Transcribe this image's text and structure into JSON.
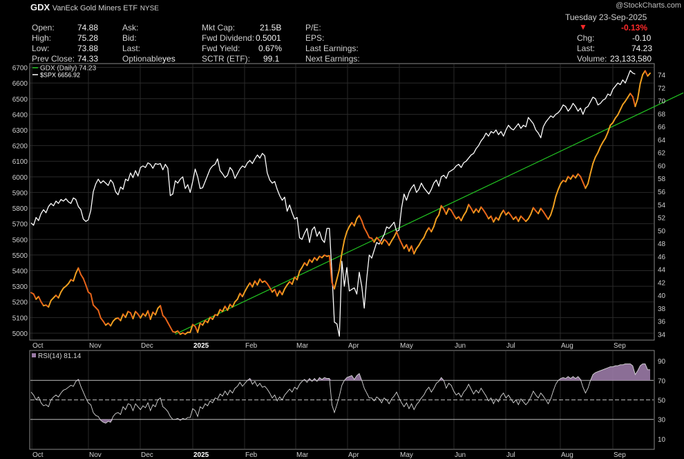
{
  "watermark": "@StockCharts.com",
  "header": {
    "symbol": "GDX",
    "name": "VanEck Gold Miners ETF",
    "exchange": "NYSE",
    "date": "Tuesday  23-Sep-2025",
    "pct_change": "-0.13%",
    "change_direction": "down",
    "fields": {
      "open_label": "Open:",
      "open": "74.88",
      "high_label": "High:",
      "high": "75.28",
      "low_label": "Low:",
      "low": "73.88",
      "prev_label": "Prev Close:",
      "prev": "74.33",
      "ask_label": "Ask:",
      "bid_label": "Bid:",
      "last_label": "Last:",
      "optionable_label": "Optionable",
      "optionable": "yes",
      "mktcap_label": "Mkt Cap:",
      "mktcap": "21.5B",
      "fwddiv_label": "Fwd Dividend:",
      "fwddiv": "0.5001",
      "fwdyield_label": "Fwd Yield:",
      "fwdyield": "0.67%",
      "sctr_label": "SCTR (ETF):",
      "sctr": "99.1",
      "pe_label": "P/E:",
      "eps_label": "EPS:",
      "lastearn_label": "Last Earnings:",
      "nextearn_label": "Next Earnings:",
      "chg_label": "Chg:",
      "chg": "-0.10",
      "last2_label": "Last:",
      "last2": "74.23",
      "volume_label": "Volume:",
      "volume": "23,133,580"
    }
  },
  "colors": {
    "gdx_up": "#f0a020",
    "gdx_down": "#e8641a",
    "spx": "#ffffff",
    "trendline": "#22c522",
    "rsi": "#d8d8d8",
    "rsi_fill": "#9a7aa6",
    "grid": "#2a2a2a",
    "axis_text": "#cfcfcf"
  },
  "chart_data": [
    {
      "type": "line",
      "x_ticks": [
        "Oct",
        "Nov",
        "Dec",
        "2025",
        "Feb",
        "Mar",
        "Apr",
        "May",
        "Jun",
        "Jul",
        "Aug",
        "Sep"
      ],
      "left_axis_ticks": [
        5000,
        5100,
        5200,
        5300,
        5400,
        5500,
        5600,
        5700,
        5800,
        5900,
        6000,
        6100,
        6200,
        6300,
        6400,
        6500,
        6600,
        6700
      ],
      "right_axis_ticks": [
        34,
        36,
        38,
        40,
        42,
        44,
        46,
        48,
        50,
        52,
        54,
        56,
        58,
        60,
        62,
        64,
        66,
        68,
        70,
        72,
        74
      ],
      "left_ylim": [
        4960,
        6720
      ],
      "right_ylim": [
        33.2,
        75.6
      ],
      "legend": [
        {
          "label": "GDX (Daily) 74.23",
          "color": "#22c522"
        },
        {
          "label": "$SPX 6656.92",
          "color": "#ffffff"
        }
      ],
      "legend_position": "top-left",
      "series": [
        {
          "name": "GDX (Daily) 74.23",
          "axis": "right",
          "values": [
            40.4,
            40.2,
            39.4,
            39.8,
            39.0,
            38.4,
            38.5,
            38.2,
            39.2,
            39.6,
            40.0,
            39.6,
            40.5,
            41.1,
            41.4,
            41.8,
            42.4,
            42.2,
            43.4,
            44.2,
            43.2,
            42.6,
            41.6,
            40.5,
            40.2,
            38.5,
            38.1,
            37.7,
            36.5,
            36.0,
            35.4,
            35.7,
            35.3,
            36.0,
            36.4,
            36.5,
            36.1,
            37.1,
            36.6,
            37.5,
            37.3,
            36.4,
            37.5,
            37.1,
            36.5,
            37.2,
            36.8,
            37.6,
            36.3,
            37.4,
            37.0,
            38.0,
            38.4,
            36.9,
            36.5,
            35.8,
            35.1,
            34.4,
            34.3,
            34.5,
            34.0,
            34.2,
            34.0,
            34.3,
            34.3,
            35.5,
            35.2,
            34.3,
            35.7,
            35.4,
            36.1,
            35.8,
            36.6,
            36.3,
            37.0,
            36.9,
            37.8,
            37.5,
            38.3,
            37.7,
            38.6,
            38.2,
            39.0,
            39.4,
            40.3,
            39.8,
            40.6,
            41.3,
            41.9,
            41.3,
            42.2,
            41.6,
            42.5,
            42.0,
            42.2,
            41.8,
            41.2,
            40.5,
            40.9,
            39.9,
            40.7,
            40.1,
            41.0,
            41.6,
            42.1,
            41.7,
            42.8,
            42.4,
            43.7,
            44.3,
            45.0,
            44.6,
            45.5,
            45.1,
            45.8,
            45.4,
            46.0,
            45.8,
            46.2,
            46.0,
            46.1,
            42.0,
            41.0,
            42.5,
            44.0,
            46.5,
            48.5,
            49.8,
            50.6,
            51.2,
            50.7,
            51.8,
            52.3,
            51.5,
            50.4,
            49.7,
            48.9,
            48.8,
            48.2,
            48.9,
            48.5,
            47.9,
            48.6,
            48.3,
            47.7,
            48.4,
            49.0,
            49.8,
            48.8,
            48.0,
            47.2,
            47.8,
            46.8,
            47.6,
            46.4,
            47.2,
            47.7,
            48.4,
            48.9,
            49.8,
            50.4,
            49.8,
            50.6,
            51.8,
            52.4,
            53.8,
            53.3,
            52.5,
            53.4,
            53.1,
            52.4,
            51.8,
            52.1,
            51.5,
            52.3,
            52.9,
            54.0,
            53.4,
            52.7,
            53.3,
            52.8,
            53.6,
            53.1,
            52.5,
            51.8,
            52.2,
            51.3,
            52.0,
            51.6,
            52.5,
            53.1,
            52.4,
            52.8,
            52.3,
            51.7,
            52.1,
            51.4,
            52.2,
            51.8,
            51.4,
            51.8,
            52.5,
            53.5,
            53.0,
            52.6,
            53.4,
            52.9,
            52.3,
            51.7,
            52.4,
            53.6,
            55.2,
            56.3,
            57.2,
            57.7,
            57.5,
            58.3,
            57.9,
            58.5,
            58.1,
            58.7,
            58.3,
            57.4,
            56.5,
            57.2,
            58.8,
            60.3,
            61.3,
            62.0,
            62.9,
            63.6,
            64.2,
            65.1,
            66.2,
            66.6,
            67.3,
            67.8,
            68.6,
            69.4,
            69.9,
            70.5,
            71.1,
            70.6,
            69.1,
            70.3,
            72.6,
            74.0,
            74.6,
            73.8,
            74.23
          ]
        },
        {
          "name": "$SPX 6656.92",
          "axis": "left",
          "values": [
            5705,
            5690,
            5740,
            5720,
            5765,
            5790,
            5770,
            5810,
            5830,
            5815,
            5845,
            5830,
            5855,
            5845,
            5860,
            5840,
            5830,
            5865,
            5855,
            5810,
            5790,
            5730,
            5715,
            5725,
            5785,
            5905,
            5955,
            5985,
            5960,
            5975,
            5960,
            5945,
            5980,
            5960,
            5905,
            5885,
            5935,
            5920,
            5985,
            5975,
            6025,
            5995,
            6040,
            6005,
            6060,
            6070,
            6060,
            6090,
            6080,
            6055,
            6085,
            6080,
            6085,
            6045,
            6080,
            6055,
            5880,
            5890,
            5975,
            5960,
            5985,
            6000,
            5925,
            5950,
            5900,
            5970,
            6050,
            6000,
            5925,
            5930,
            5970,
            6010,
            6050,
            6070,
            6080,
            6115,
            6040,
            6020,
            5995,
            6010,
            6060,
            6040,
            5990,
            6020,
            6050,
            6070,
            6060,
            6090,
            6105,
            6085,
            6115,
            6140,
            6120,
            6150,
            6135,
            6025,
            5980,
            5960,
            5970,
            5920,
            5880,
            5850,
            5870,
            5780,
            5820,
            5770,
            5730,
            5740,
            5610,
            5600,
            5640,
            5670,
            5580,
            5660,
            5680,
            5620,
            5650,
            5600,
            5580,
            5670,
            5670,
            5390,
            5070,
            5060,
            4980,
            5460,
            5300,
            5420,
            5270,
            5280,
            5290,
            5250,
            5390,
            5300,
            5160,
            5350,
            5500,
            5480,
            5530,
            5580,
            5570,
            5600,
            5630,
            5680,
            5670,
            5690,
            5710,
            5650,
            5660,
            5800,
            5890,
            5850,
            5900,
            5930,
            5950,
            5900,
            5920,
            5960,
            5930,
            5910,
            5890,
            5920,
            5960,
            5980,
            5940,
            6000,
            6010,
            5990,
            6030,
            6040,
            6050,
            6070,
            6080,
            6060,
            6090,
            6100,
            6120,
            6140,
            6150,
            6180,
            6200,
            6230,
            6250,
            6280,
            6260,
            6290,
            6280,
            6300,
            6270,
            6290,
            6260,
            6300,
            6330,
            6310,
            6300,
            6320,
            6340,
            6310,
            6330,
            6320,
            6380,
            6360,
            6340,
            6300,
            6280,
            6250,
            6320,
            6350,
            6370,
            6390,
            6380,
            6400,
            6410,
            6430,
            6460,
            6450,
            6420,
            6440,
            6470,
            6450,
            6420,
            6440,
            6400,
            6440,
            6450,
            6480,
            6510,
            6500,
            6460,
            6470,
            6490,
            6500,
            6530,
            6520,
            6560,
            6580,
            6600,
            6590,
            6620,
            6600,
            6640,
            6680,
            6664,
            6657
          ]
        }
      ],
      "trendline": {
        "from": [
          "Jan",
          34.0
        ],
        "to": [
          "Sep-23",
          70.8
        ],
        "axis": "right"
      }
    },
    {
      "type": "line",
      "title": "RSI(14) 81.14",
      "x_ticks": [
        "Oct",
        "Nov",
        "Dec",
        "2025",
        "Feb",
        "Mar",
        "Apr",
        "May",
        "Jun",
        "Jul",
        "Aug",
        "Sep"
      ],
      "y_ticks": [
        10,
        30,
        50,
        70,
        90
      ],
      "ylim": [
        0,
        100
      ],
      "reference_lines": [
        70,
        50,
        30
      ],
      "series": [
        {
          "name": "RSI(14) 81.14",
          "values": [
            58,
            55,
            50,
            53,
            47,
            44,
            45,
            43,
            50,
            53,
            55,
            53,
            57,
            60,
            61,
            63,
            65,
            64,
            69,
            71,
            64,
            58,
            52,
            47,
            45,
            37,
            34,
            33,
            29,
            27,
            26,
            28,
            27,
            33,
            36,
            37,
            35,
            43,
            40,
            46,
            45,
            39,
            46,
            43,
            40,
            44,
            42,
            47,
            39,
            45,
            43,
            50,
            52,
            43,
            41,
            38,
            33,
            30,
            30,
            31,
            29,
            31,
            30,
            32,
            32,
            41,
            39,
            33,
            43,
            41,
            46,
            44,
            49,
            47,
            52,
            51,
            56,
            54,
            59,
            55,
            60,
            57,
            62,
            64,
            68,
            64,
            67,
            70,
            72,
            66,
            69,
            64,
            67,
            63,
            64,
            61,
            57,
            52,
            55,
            49,
            53,
            50,
            55,
            58,
            61,
            58,
            63,
            61,
            66,
            69,
            71,
            68,
            72,
            69,
            72,
            69,
            73,
            71,
            73,
            72,
            72,
            45,
            37,
            45,
            54,
            65,
            70,
            73,
            74,
            75,
            71,
            75,
            77,
            70,
            62,
            57,
            52,
            52,
            49,
            53,
            51,
            47,
            52,
            50,
            46,
            51,
            54,
            58,
            52,
            47,
            43,
            47,
            41,
            46,
            40,
            45,
            48,
            52,
            55,
            60,
            63,
            58,
            62,
            67,
            69,
            73,
            70,
            62,
            67,
            65,
            59,
            55,
            57,
            53,
            58,
            61,
            66,
            61,
            56,
            60,
            57,
            62,
            58,
            54,
            49,
            52,
            46,
            51,
            48,
            54,
            57,
            52,
            55,
            51,
            47,
            50,
            45,
            51,
            48,
            45,
            48,
            53,
            59,
            55,
            52,
            57,
            54,
            50,
            46,
            51,
            59,
            66,
            70,
            72,
            73,
            72,
            74,
            72,
            74,
            72,
            74,
            71,
            63,
            57,
            62,
            70,
            76,
            78,
            79,
            80,
            81,
            82,
            83,
            84,
            84,
            85,
            85,
            86,
            86,
            87,
            87,
            87,
            85,
            76,
            80,
            85,
            87,
            87,
            81,
            81
          ]
        }
      ]
    }
  ]
}
